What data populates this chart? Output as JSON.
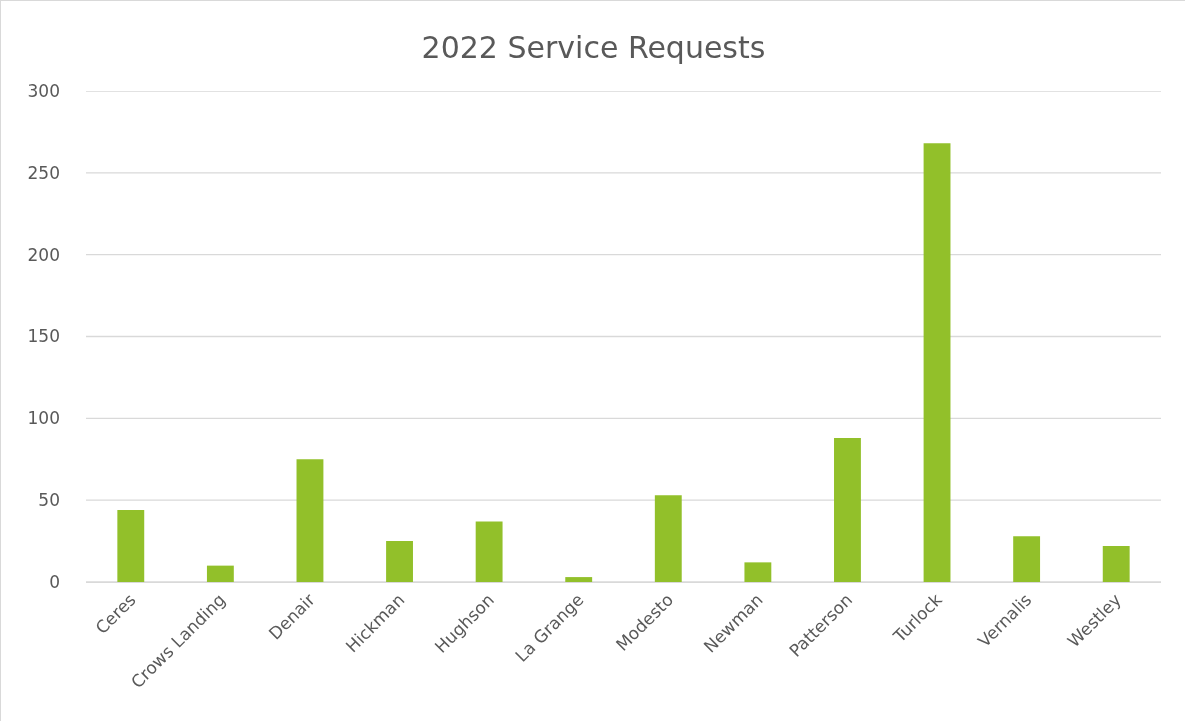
{
  "chart_data": {
    "type": "bar",
    "title": "2022 Service Requests",
    "categories": [
      "Ceres",
      "Crows Landing",
      "Denair",
      "Hickman",
      "Hughson",
      "La Grange",
      "Modesto",
      "Newman",
      "Patterson",
      "Turlock",
      "Vernalis",
      "Westley"
    ],
    "values": [
      44,
      10,
      75,
      25,
      37,
      3,
      53,
      12,
      88,
      268,
      28,
      22
    ],
    "color": "#92c02a",
    "ylim": [
      0,
      300
    ],
    "yticks": [
      0,
      50,
      100,
      150,
      200,
      250,
      300
    ],
    "grid": "y"
  }
}
